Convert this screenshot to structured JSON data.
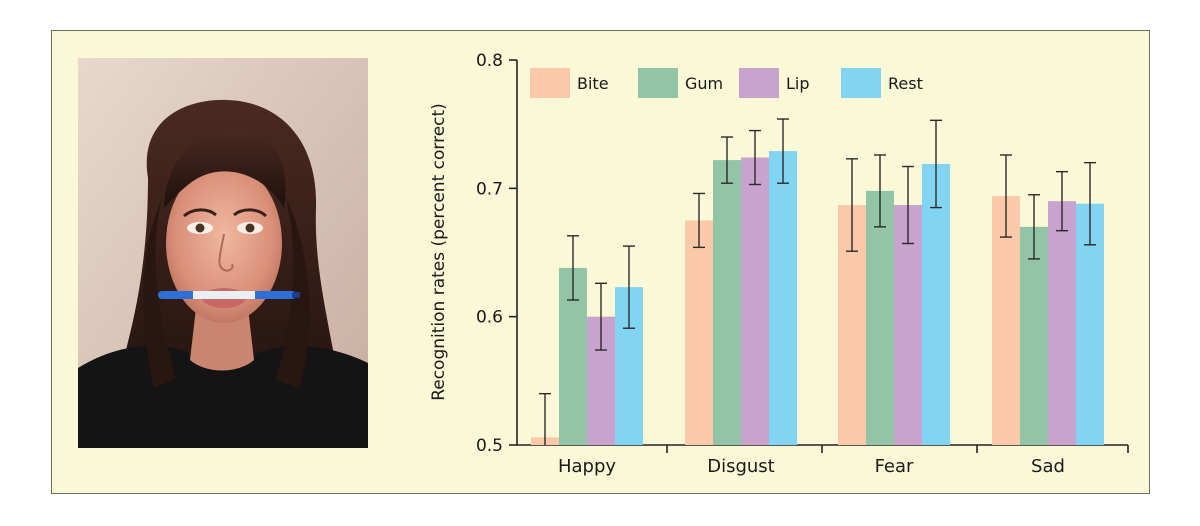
{
  "photo": {
    "description_name": "woman-holding-pen-between-teeth"
  },
  "chart_data": {
    "type": "bar",
    "title": "",
    "xlabel": "",
    "ylabel": "Recognition rates (percent correct)",
    "ylim": [
      0.5,
      0.8
    ],
    "yticks": [
      "0.5",
      "0.6",
      "0.7",
      "0.8"
    ],
    "ytick_values": [
      0.5,
      0.6,
      0.7,
      0.8
    ],
    "categories": [
      "Happy",
      "Disgust",
      "Fear",
      "Sad"
    ],
    "legend_position": "top-left",
    "series": [
      {
        "name": "Bite",
        "color": "#fbc8a8",
        "values": [
          0.506,
          0.675,
          0.687,
          0.694
        ],
        "errors": [
          0.034,
          0.021,
          0.036,
          0.032
        ]
      },
      {
        "name": "Gum",
        "color": "#92c4a6",
        "values": [
          0.638,
          0.722,
          0.698,
          0.67
        ],
        "errors": [
          0.025,
          0.018,
          0.028,
          0.025
        ]
      },
      {
        "name": "Lip",
        "color": "#c8a3ce",
        "values": [
          0.6,
          0.724,
          0.687,
          0.69
        ],
        "errors": [
          0.026,
          0.021,
          0.03,
          0.023
        ]
      },
      {
        "name": "Rest",
        "color": "#82d4f3",
        "values": [
          0.623,
          0.729,
          0.719,
          0.688
        ],
        "errors": [
          0.032,
          0.025,
          0.034,
          0.032
        ]
      }
    ]
  }
}
